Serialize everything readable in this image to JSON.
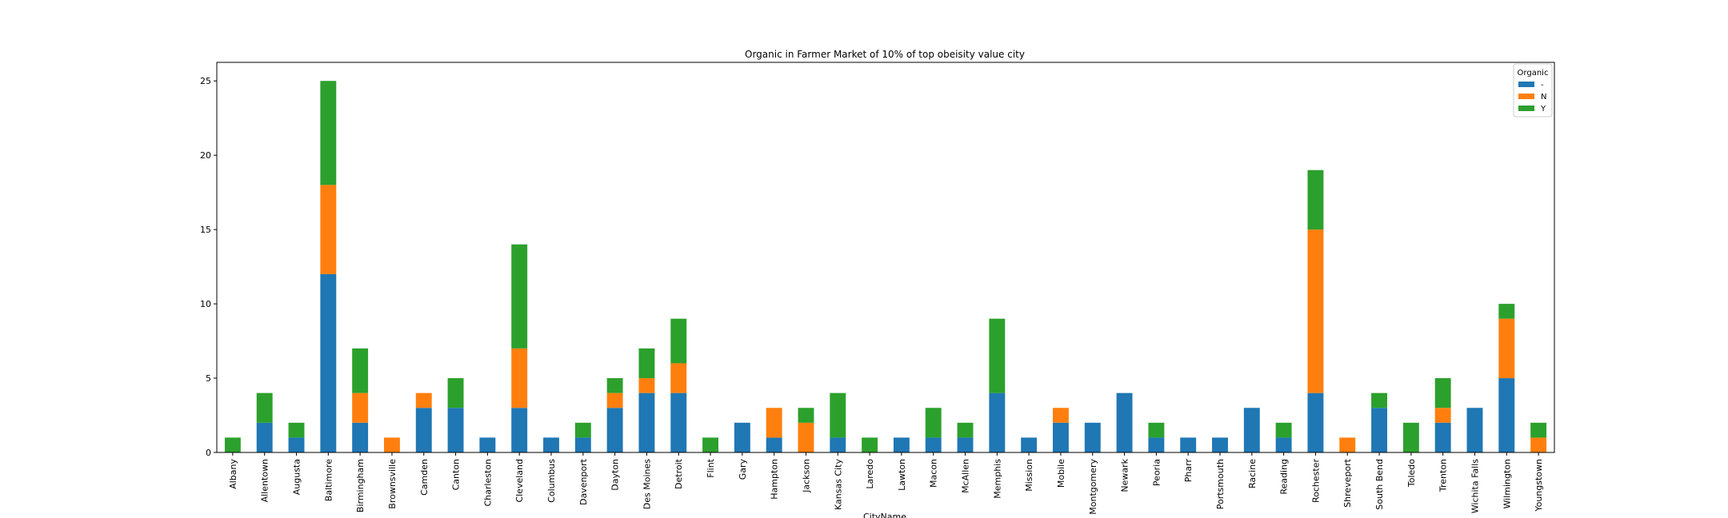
{
  "chart_data": {
    "type": "bar",
    "stacked": true,
    "title": "Organic in Farmer Market of 10% of top obeisity value city",
    "xlabel": "CityName",
    "ylabel": "",
    "ylim": [
      0,
      26.25
    ],
    "yticks": [
      0,
      5,
      10,
      15,
      20,
      25
    ],
    "grid": false,
    "legend": {
      "title": "Organic",
      "position": "top-right"
    },
    "categories": [
      "Albany",
      "Allentown",
      "Augusta",
      "Baltimore",
      "Birmingham",
      "Brownsville",
      "Camden",
      "Canton",
      "Charleston",
      "Cleveland",
      "Columbus",
      "Davenport",
      "Dayton",
      "Des Moines",
      "Detroit",
      "Flint",
      "Gary",
      "Hampton",
      "Jackson",
      "Kansas City",
      "Laredo",
      "Lawton",
      "Macon",
      "McAllen",
      "Memphis",
      "Mission",
      "Mobile",
      "Montgomery",
      "Newark",
      "Peoria",
      "Pharr",
      "Portsmouth",
      "Racine",
      "Reading",
      "Rochester",
      "Shreveport",
      "South Bend",
      "Toledo",
      "Trenton",
      "Wichita Falls",
      "Wilmington",
      "Youngstown"
    ],
    "series": [
      {
        "name": "-",
        "color": "#1f77b4",
        "values": [
          0,
          2,
          1,
          12,
          2,
          0,
          3,
          3,
          1,
          3,
          1,
          1,
          3,
          4,
          4,
          0,
          2,
          1,
          0,
          1,
          0,
          1,
          1,
          1,
          4,
          1,
          2,
          2,
          4,
          1,
          1,
          1,
          3,
          1,
          4,
          0,
          3,
          0,
          2,
          3,
          5,
          0
        ]
      },
      {
        "name": "N",
        "color": "#ff7f0e",
        "values": [
          0,
          0,
          0,
          6,
          2,
          1,
          1,
          0,
          0,
          4,
          0,
          0,
          1,
          1,
          2,
          0,
          0,
          2,
          2,
          0,
          0,
          0,
          0,
          0,
          0,
          0,
          1,
          0,
          0,
          0,
          0,
          0,
          0,
          0,
          11,
          1,
          0,
          0,
          1,
          0,
          4,
          1
        ]
      },
      {
        "name": "Y",
        "color": "#2ca02c",
        "values": [
          1,
          2,
          1,
          7,
          3,
          0,
          0,
          2,
          0,
          7,
          0,
          1,
          1,
          2,
          3,
          1,
          0,
          0,
          1,
          3,
          1,
          0,
          2,
          1,
          5,
          0,
          0,
          0,
          0,
          1,
          0,
          0,
          0,
          1,
          4,
          0,
          1,
          2,
          2,
          0,
          1,
          1
        ]
      }
    ]
  }
}
